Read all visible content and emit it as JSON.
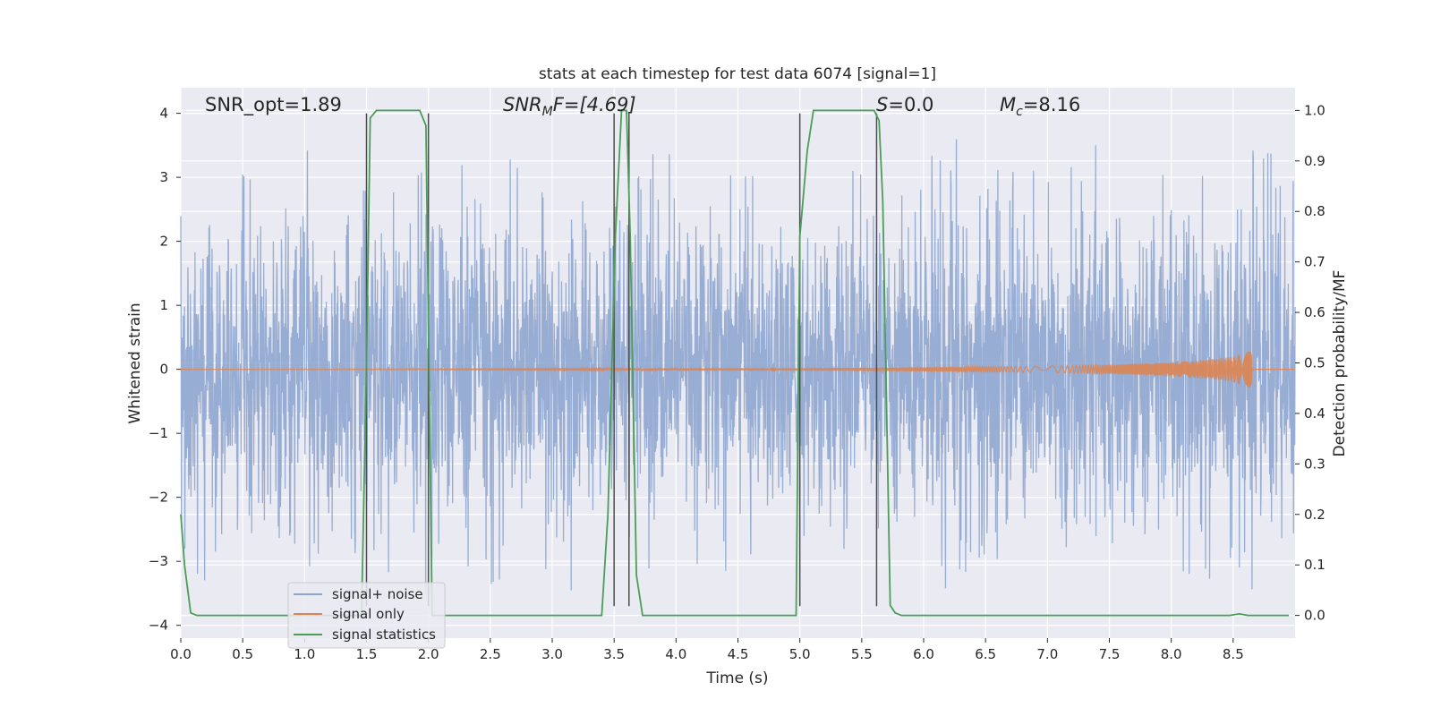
{
  "chart_data": {
    "type": "line",
    "title": "stats at each timestep for test data 6074 [signal=1]",
    "xlabel": "Time (s)",
    "ylabel": "Whitened strain",
    "y2label": "Detection probability/MF",
    "xlim": [
      0.0,
      9.0
    ],
    "ylim": [
      -4.2,
      4.4
    ],
    "y2lim": [
      -0.045,
      1.045
    ],
    "x_ticks": [
      0.0,
      0.5,
      1.0,
      1.5,
      2.0,
      2.5,
      3.0,
      3.5,
      4.0,
      4.5,
      5.0,
      5.5,
      6.0,
      6.5,
      7.0,
      7.5,
      8.0,
      8.5
    ],
    "x_tick_labels": [
      "0.0",
      "0.5",
      "1.0",
      "1.5",
      "2.0",
      "2.5",
      "3.0",
      "3.5",
      "4.0",
      "4.5",
      "5.0",
      "5.5",
      "6.0",
      "6.5",
      "7.0",
      "7.5",
      "8.0",
      "8.5"
    ],
    "y_ticks": [
      4,
      3,
      2,
      1,
      0,
      -1,
      -2,
      -3,
      -4
    ],
    "y_tick_labels": [
      "4",
      "3",
      "2",
      "1",
      "0",
      "−1",
      "−2",
      "−3",
      "−4"
    ],
    "y2_ticks": [
      1.0,
      0.9,
      0.8,
      0.7,
      0.6,
      0.5,
      0.4,
      0.3,
      0.2,
      0.1,
      0.0
    ],
    "y2_tick_labels": [
      "1.0",
      "0.9",
      "0.8",
      "0.7",
      "0.6",
      "0.5",
      "0.4",
      "0.3",
      "0.2",
      "0.1",
      "0.0"
    ],
    "grid": true,
    "legend_position": "lower-left",
    "annotations": {
      "snr_opt": "SNR_opt=1.89",
      "snr_mf_main": "SNR",
      "snr_mf_sub": "M",
      "snr_mf_rest": "F=[4.69]",
      "s_italic": "S",
      "s_rest": "=0.0",
      "mc_main": "M",
      "mc_sub": "c",
      "mc_rest": "=8.16"
    },
    "series": [
      {
        "name": "signal+ noise",
        "color": "#8fa6cf",
        "kind": "whitened noise, approx. gaussian, |amplitude| mostly < 2.5, peaks to ~3.8",
        "x_range": [
          0.0,
          9.0
        ],
        "sample_amplitude": [
          3.5,
          2.9,
          3.3,
          2.8,
          3.8,
          3.3,
          3.2,
          3.7,
          3.0,
          3.2,
          3.5,
          3.2,
          3.8,
          3.1,
          3.3,
          3.4,
          3.2,
          3.4,
          3.2,
          3.5,
          3.3,
          3.1,
          3.2,
          3.0,
          3.8,
          3.6,
          3.2,
          3.4,
          3.3,
          3.5,
          3.0,
          3.2,
          3.4,
          3.3,
          3.5,
          3.4
        ]
      },
      {
        "name": "signal only",
        "color": "#dd8452",
        "kind": "chirp, amplitude grows toward merger",
        "x": [
          0.0,
          5.0,
          6.0,
          7.0,
          7.5,
          8.0,
          8.3,
          8.5,
          8.6,
          8.65
        ],
        "envelope": [
          0.0,
          0.02,
          0.03,
          0.05,
          0.07,
          0.11,
          0.15,
          0.2,
          0.27,
          0.35
        ]
      },
      {
        "name": "signal statistics",
        "color": "#4a9e57",
        "axis": "right",
        "x": [
          0.0,
          0.03,
          0.08,
          0.13,
          1.46,
          1.5,
          1.53,
          1.58,
          1.63,
          1.93,
          1.98,
          2.03,
          2.08,
          3.4,
          3.45,
          3.51,
          3.56,
          3.6,
          3.63,
          3.68,
          3.73,
          4.97,
          5.0,
          5.06,
          5.11,
          5.6,
          5.64,
          5.67,
          5.73,
          5.77,
          5.82,
          8.47,
          8.55,
          8.62,
          8.95
        ],
        "y": [
          0.2,
          0.1,
          0.005,
          0.0,
          0.0,
          0.5,
          0.985,
          1.0,
          1.0,
          1.0,
          0.97,
          0.0,
          0.0,
          0.0,
          0.2,
          0.75,
          1.0,
          1.0,
          0.75,
          0.08,
          0.0,
          0.0,
          0.75,
          0.92,
          1.0,
          1.0,
          0.98,
          0.82,
          0.02,
          0.005,
          0.0,
          0.0,
          0.003,
          0.0,
          0.0
        ]
      }
    ],
    "vertical_lines": [
      1.5,
      2.0,
      3.5,
      3.62,
      5.0,
      5.62
    ],
    "vertical_line_color": "#4d4d4d"
  }
}
